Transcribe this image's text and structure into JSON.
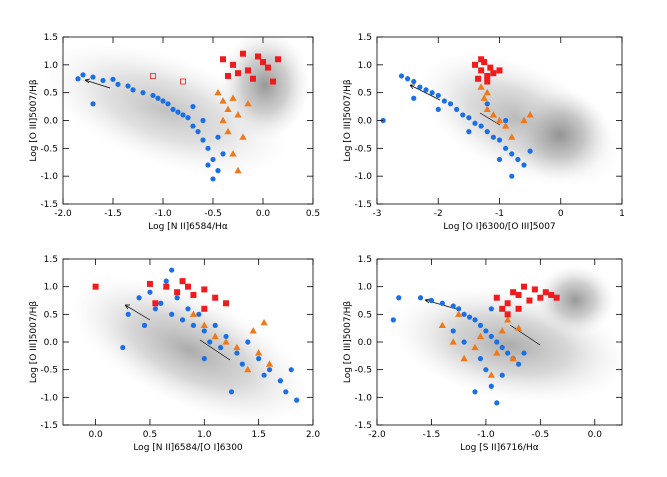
{
  "chart_data": [
    {
      "type": "scatter",
      "xlabel": "Log [N II]6584/Hα",
      "ylabel": "Log [O III]5007/Hβ",
      "xlim": [
        -2,
        0.5
      ],
      "ylim": [
        -1.5,
        1.5
      ],
      "xticks": [
        {
          "value": -2,
          "label": "-2.0"
        },
        -1.5,
        {
          "value": -1,
          "label": "-1.0"
        },
        -0.5,
        {
          "value": 0,
          "label": "0.0"
        },
        0.5
      ],
      "yticks": [
        -1.5,
        {
          "value": -1,
          "label": "-1.0"
        },
        -0.5,
        {
          "value": 0,
          "label": "0.0"
        },
        0.5,
        {
          "value": 1,
          "label": "1.0"
        },
        1.5
      ],
      "series": [
        {
          "color": "#1a6fe6",
          "marker": "circle",
          "x": [
            -1.85,
            -1.8,
            -1.7,
            -1.6,
            -1.5,
            -1.45,
            -1.35,
            -1.3,
            -1.2,
            -1.1,
            -1.05,
            -1.0,
            -0.95,
            -0.9,
            -0.85,
            -0.8,
            -0.75,
            -0.7,
            -0.65,
            -0.6,
            -0.55,
            -0.5,
            -0.45,
            -0.55,
            -0.5,
            -0.4,
            -0.6,
            -1.7,
            -0.7,
            -0.45
          ],
          "y": [
            0.75,
            0.82,
            0.78,
            0.72,
            0.74,
            0.65,
            0.62,
            0.55,
            0.5,
            0.45,
            0.4,
            0.35,
            0.3,
            0.2,
            0.15,
            0.1,
            0.05,
            -0.1,
            -0.2,
            -0.35,
            -0.5,
            -0.7,
            -0.9,
            -0.8,
            -1.05,
            -0.6,
            0.0,
            0.3,
            0.25,
            -0.3
          ]
        },
        {
          "color": "#f07818",
          "marker": "triangle",
          "x": [
            -0.45,
            -0.4,
            -0.35,
            -0.3,
            -0.25,
            -0.2,
            -0.3,
            -0.35,
            -0.15,
            -0.25,
            -0.4
          ],
          "y": [
            0.5,
            0.35,
            0.2,
            0.4,
            0.1,
            -0.3,
            -0.6,
            -0.2,
            0.3,
            -0.9,
            0.0
          ]
        },
        {
          "color": "#ee1c1c",
          "marker": "square",
          "x": [
            -0.4,
            -0.3,
            -0.25,
            -0.2,
            -0.15,
            -0.1,
            0.0,
            0.05,
            0.1,
            -0.35,
            0.15,
            -0.05
          ],
          "y": [
            1.1,
            1.0,
            0.85,
            1.2,
            0.9,
            0.75,
            1.05,
            0.95,
            0.7,
            0.8,
            1.1,
            1.15
          ]
        },
        {
          "color": "#ee1c1c",
          "marker": "open-square",
          "x": [
            -1.1,
            -0.8
          ],
          "y": [
            0.8,
            0.7
          ]
        }
      ]
    },
    {
      "type": "scatter",
      "xlabel": "Log [O I]6300/[O III]5007",
      "ylabel": "Log [O III]5007/Hβ",
      "xlim": [
        -3,
        1
      ],
      "ylim": [
        -1.5,
        1.5
      ],
      "xticks": [
        -3,
        -2,
        -1,
        0,
        1
      ],
      "yticks": [
        -1.5,
        {
          "value": -1,
          "label": "-1.0"
        },
        -0.5,
        {
          "value": 0,
          "label": "0.0"
        },
        0.5,
        {
          "value": 1,
          "label": "1.0"
        },
        1.5
      ],
      "series": [
        {
          "color": "#1a6fe6",
          "marker": "circle",
          "x": [
            -2.6,
            -2.5,
            -2.4,
            -2.3,
            -2.2,
            -2.1,
            -2.0,
            -1.9,
            -1.8,
            -1.7,
            -1.6,
            -1.5,
            -1.4,
            -1.3,
            -1.2,
            -1.1,
            -1.0,
            -0.9,
            -0.8,
            -0.7,
            -0.6,
            -0.5,
            -2.0,
            -1.5,
            -1.0,
            -0.8,
            -2.4,
            -1.2,
            -0.9,
            -2.9
          ],
          "y": [
            0.8,
            0.75,
            0.7,
            0.6,
            0.55,
            0.5,
            0.45,
            0.35,
            0.3,
            0.2,
            0.1,
            0.05,
            -0.05,
            -0.1,
            -0.2,
            -0.3,
            -0.35,
            -0.5,
            -0.6,
            -0.7,
            -0.8,
            -0.55,
            0.2,
            -0.2,
            -0.7,
            -1.0,
            0.4,
            0.3,
            0.0,
            0.0
          ]
        },
        {
          "color": "#f07818",
          "marker": "triangle",
          "x": [
            -1.3,
            -1.25,
            -1.2,
            -1.1,
            -1.0,
            -0.9,
            -0.8,
            -0.6,
            -0.5,
            -1.2
          ],
          "y": [
            0.6,
            0.4,
            0.2,
            0.1,
            0.0,
            -0.1,
            -0.3,
            0.0,
            0.1,
            0.5
          ]
        },
        {
          "color": "#ee1c1c",
          "marker": "square",
          "x": [
            -1.4,
            -1.3,
            -1.25,
            -1.2,
            -1.15,
            -1.1,
            -1.35,
            -1.2,
            -1.0,
            -1.3
          ],
          "y": [
            1.0,
            0.9,
            1.05,
            0.8,
            0.95,
            0.85,
            0.75,
            0.7,
            0.9,
            1.1
          ]
        }
      ]
    },
    {
      "type": "scatter",
      "xlabel": "Log [N II]6584/[O I]6300",
      "ylabel": "Log [O III]5007/Hβ",
      "xlim": [
        -0.3,
        2.0
      ],
      "ylim": [
        -1.5,
        1.5
      ],
      "xticks": [
        {
          "value": 0,
          "label": "0.0"
        },
        0.5,
        {
          "value": 1,
          "label": "1.0"
        },
        1.5,
        {
          "value": 2,
          "label": "2.0"
        }
      ],
      "yticks": [
        -1.5,
        {
          "value": -1,
          "label": "-1.0"
        },
        -0.5,
        {
          "value": 0,
          "label": "0.0"
        },
        0.5,
        {
          "value": 1,
          "label": "1.0"
        },
        1.5
      ],
      "series": [
        {
          "color": "#1a6fe6",
          "marker": "circle",
          "x": [
            0.3,
            0.4,
            0.45,
            0.5,
            0.55,
            0.6,
            0.65,
            0.7,
            0.75,
            0.8,
            0.85,
            0.9,
            0.95,
            1.0,
            1.05,
            1.1,
            1.15,
            1.2,
            1.3,
            1.35,
            1.4,
            1.5,
            1.55,
            1.6,
            1.7,
            1.75,
            1.8,
            1.85,
            0.25,
            0.7,
            1.0,
            1.25
          ],
          "y": [
            0.5,
            0.8,
            0.3,
            0.9,
            0.6,
            0.7,
            1.1,
            0.5,
            0.8,
            0.4,
            0.6,
            0.3,
            0.5,
            0.2,
            0.0,
            0.3,
            -0.1,
            0.1,
            -0.2,
            -0.4,
            0.0,
            -0.3,
            -0.6,
            -0.5,
            -0.7,
            -0.9,
            -0.5,
            -1.05,
            -0.1,
            1.3,
            -0.3,
            -0.9
          ]
        },
        {
          "color": "#f07818",
          "marker": "triangle",
          "x": [
            0.9,
            1.0,
            1.1,
            1.2,
            1.3,
            1.4,
            1.5,
            1.55,
            1.6,
            1.45
          ],
          "y": [
            0.5,
            0.3,
            0.1,
            0.0,
            -0.1,
            -0.5,
            -0.2,
            0.35,
            -0.4,
            0.2
          ]
        },
        {
          "color": "#ee1c1c",
          "marker": "square",
          "x": [
            0.0,
            0.5,
            0.65,
            0.75,
            0.85,
            0.9,
            1.0,
            1.1,
            1.2,
            0.8,
            0.55,
            1.0
          ],
          "y": [
            1.0,
            1.05,
            1.0,
            0.9,
            1.0,
            0.85,
            0.95,
            0.8,
            0.7,
            1.1,
            0.7,
            0.6
          ]
        }
      ]
    },
    {
      "type": "scatter",
      "xlabel": "Log [S II]6716/Hα",
      "ylabel": "Log [O III]5007/Hβ",
      "xlim": [
        -2,
        0.25
      ],
      "ylim": [
        -1.5,
        1.5
      ],
      "xticks": [
        {
          "value": -2,
          "label": "-2.0"
        },
        -1.5,
        {
          "value": -1,
          "label": "-1.0"
        },
        -0.5,
        {
          "value": 0,
          "label": "0.0"
        }
      ],
      "yticks": [
        -1.5,
        {
          "value": -1,
          "label": "-1.0"
        },
        -0.5,
        {
          "value": 0,
          "label": "0.0"
        },
        0.5,
        {
          "value": 1,
          "label": "1.0"
        },
        1.5
      ],
      "series": [
        {
          "color": "#1a6fe6",
          "marker": "circle",
          "x": [
            -1.8,
            -1.85,
            -1.6,
            -1.5,
            -1.4,
            -1.3,
            -1.25,
            -1.2,
            -1.15,
            -1.1,
            -1.05,
            -1.0,
            -0.95,
            -0.9,
            -0.85,
            -0.8,
            -0.75,
            -0.7,
            -0.65,
            -1.0,
            -0.95,
            -1.05,
            -0.9,
            -1.2,
            -1.3,
            -0.85,
            -1.1,
            -0.95
          ],
          "y": [
            0.8,
            0.4,
            0.8,
            0.75,
            0.7,
            0.65,
            0.6,
            0.5,
            0.45,
            0.4,
            0.3,
            0.2,
            0.1,
            0.0,
            -0.1,
            -0.2,
            -0.3,
            -0.4,
            -0.2,
            -0.5,
            -0.8,
            -0.3,
            -1.1,
            0.0,
            0.2,
            -0.6,
            -0.9,
            0.6
          ]
        },
        {
          "color": "#f07818",
          "marker": "triangle",
          "x": [
            -1.4,
            -1.3,
            -1.2,
            -1.1,
            -1.05,
            -0.95,
            -0.9,
            -0.85,
            -0.8,
            -0.75,
            -0.7,
            -1.25
          ],
          "y": [
            0.3,
            0.0,
            -0.3,
            -0.1,
            0.1,
            -0.6,
            -0.2,
            0.2,
            0.4,
            -0.3,
            0.25,
            0.5
          ]
        },
        {
          "color": "#ee1c1c",
          "marker": "square",
          "x": [
            -0.9,
            -0.85,
            -0.8,
            -0.75,
            -0.7,
            -0.65,
            -0.6,
            -0.55,
            -0.5,
            -0.45,
            -0.4,
            -0.35,
            -0.8,
            -0.7
          ],
          "y": [
            0.8,
            0.6,
            0.7,
            0.9,
            0.85,
            1.0,
            0.75,
            0.95,
            0.8,
            0.9,
            0.85,
            0.8,
            0.5,
            0.6
          ]
        }
      ]
    }
  ]
}
